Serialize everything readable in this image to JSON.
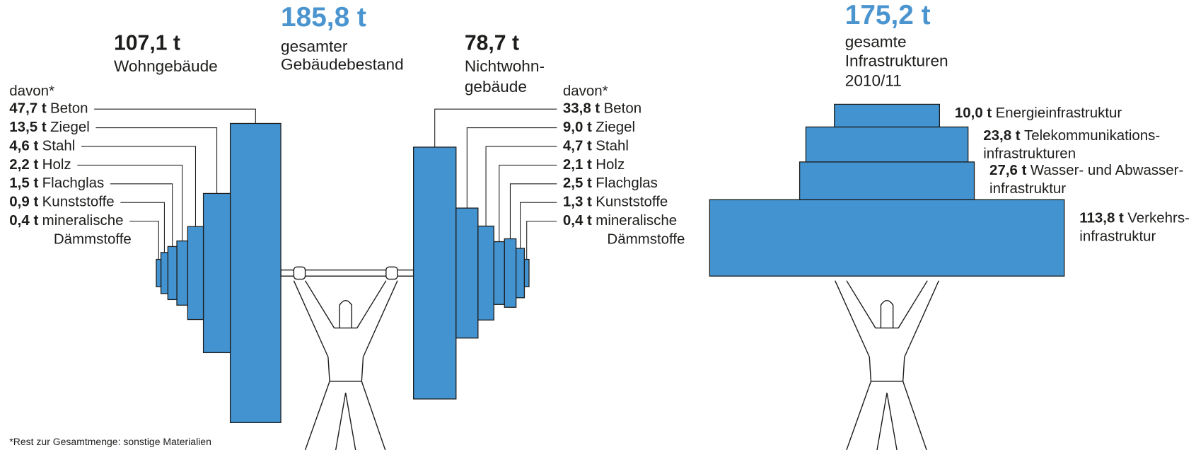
{
  "buildings": {
    "total": {
      "label": "185,8 t",
      "caption": [
        "gesamter",
        "Gebäudebestand"
      ]
    },
    "residential": {
      "label": "107,1 t",
      "caption": [
        "Wohngebäude"
      ],
      "davon": "davon*",
      "materials": [
        {
          "value": 47.7,
          "label": "47,7 t",
          "name": [
            "Beton"
          ]
        },
        {
          "value": 13.5,
          "label": "13,5 t",
          "name": [
            "Ziegel"
          ]
        },
        {
          "value": 4.6,
          "label": "4,6 t",
          "name": [
            "Stahl"
          ]
        },
        {
          "value": 2.2,
          "label": "2,2 t",
          "name": [
            "Holz"
          ]
        },
        {
          "value": 1.5,
          "label": "1,5 t",
          "name": [
            "Flachglas"
          ]
        },
        {
          "value": 0.9,
          "label": "0,9 t",
          "name": [
            "Kunststoffe"
          ]
        },
        {
          "value": 0.4,
          "label": "0,4 t",
          "name": [
            "mineralische",
            "Dämmstoffe"
          ]
        }
      ]
    },
    "nonresidential": {
      "label": "78,7 t",
      "caption": [
        "Nichtwohn-",
        "gebäude"
      ],
      "davon": "davon*",
      "materials": [
        {
          "value": 33.8,
          "label": "33,8 t",
          "name": [
            "Beton"
          ]
        },
        {
          "value": 9.0,
          "label": "9,0 t",
          "name": [
            "Ziegel"
          ]
        },
        {
          "value": 4.7,
          "label": "4,7 t",
          "name": [
            "Stahl"
          ]
        },
        {
          "value": 2.1,
          "label": "2,1 t",
          "name": [
            "Holz"
          ]
        },
        {
          "value": 2.5,
          "label": "2,5 t",
          "name": [
            "Flachglas"
          ]
        },
        {
          "value": 1.3,
          "label": "1,3 t",
          "name": [
            "Kunststoffe"
          ]
        },
        {
          "value": 0.4,
          "label": "0,4 t",
          "name": [
            "mineralische",
            "Dämmstoffe"
          ]
        }
      ]
    },
    "footnote": "*Rest zur Gesamtmenge: sonstige Materialien"
  },
  "infrastructure": {
    "total": {
      "label": "175,2 t",
      "caption": [
        "gesamte",
        "Infrastrukturen",
        "2010/11"
      ]
    },
    "items": [
      {
        "value": 10.0,
        "label": "10,0 t",
        "name": [
          "Energieinfrastruktur"
        ]
      },
      {
        "value": 23.8,
        "label": "23,8 t",
        "name": [
          "Telekommunikations-",
          "infrastrukturen"
        ]
      },
      {
        "value": 27.6,
        "label": "27,6 t",
        "name": [
          "Wasser- und Abwasser-",
          "infrastruktur"
        ]
      },
      {
        "value": 113.8,
        "label": "113,8 t",
        "name": [
          "Verkehrs-",
          "infrastruktur"
        ]
      }
    ]
  }
}
